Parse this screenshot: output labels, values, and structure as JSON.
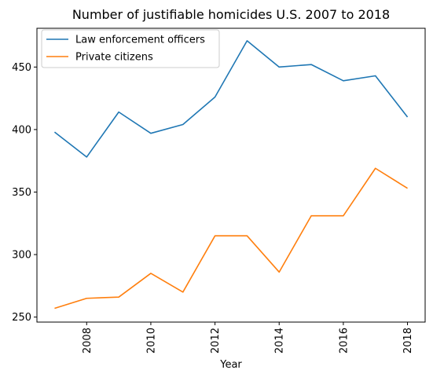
{
  "chart_data": {
    "type": "line",
    "title": "Number of justifiable homicides U.S. 2007 to 2018",
    "xlabel": "Year",
    "ylabel": "",
    "x": [
      2007,
      2008,
      2009,
      2010,
      2011,
      2012,
      2013,
      2014,
      2015,
      2016,
      2017,
      2018
    ],
    "xticks": [
      2008,
      2010,
      2012,
      2014,
      2016,
      2018
    ],
    "yticks": [
      250,
      300,
      350,
      400,
      450
    ],
    "xlim": [
      2006.45,
      2018.55
    ],
    "ylim": [
      246,
      481
    ],
    "x_tick_rotation": "vertical",
    "grid": false,
    "legend_position": "upper-left",
    "series": [
      {
        "name": "Law enforcement officers",
        "color": "#1f77b4",
        "values": [
          398,
          378,
          414,
          397,
          404,
          426,
          471,
          450,
          452,
          439,
          443,
          410
        ]
      },
      {
        "name": "Private citizens",
        "color": "#ff7f0e",
        "values": [
          257,
          265,
          266,
          285,
          270,
          315,
          315,
          286,
          331,
          331,
          369,
          353
        ]
      }
    ]
  }
}
